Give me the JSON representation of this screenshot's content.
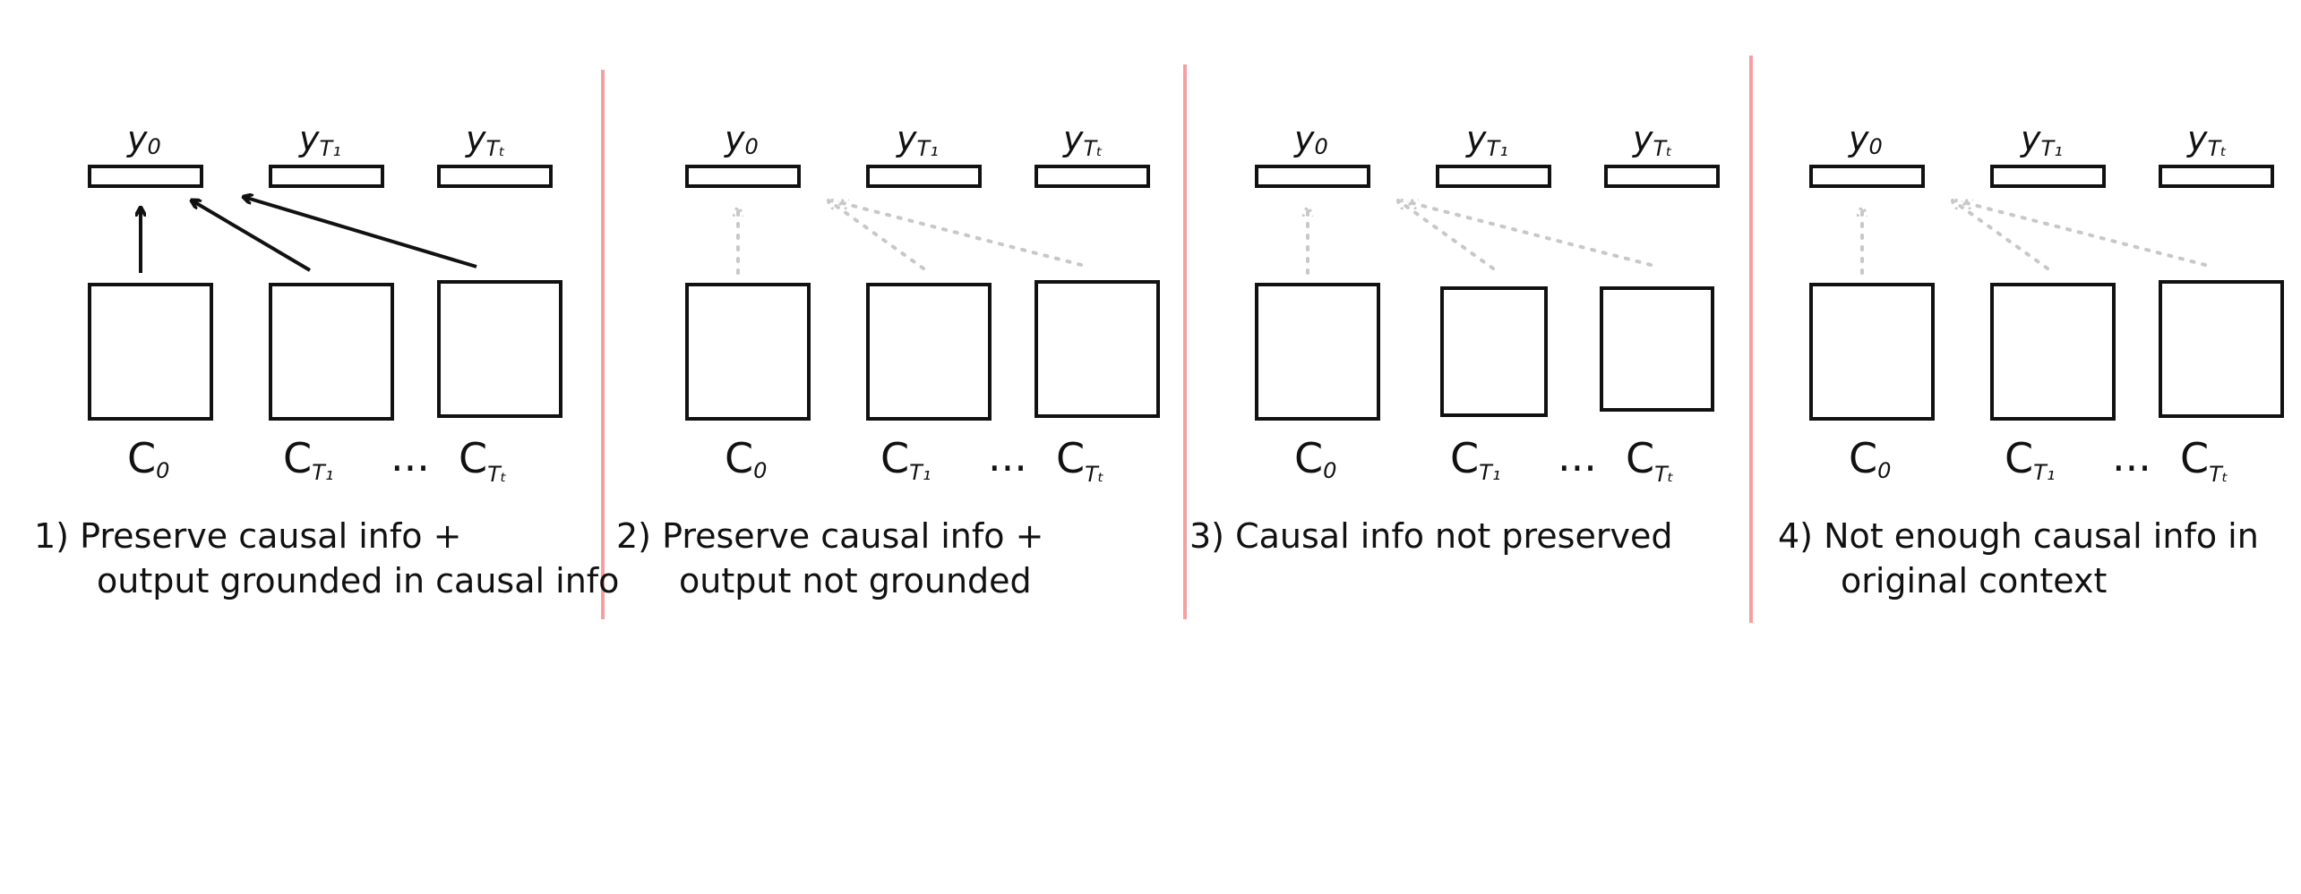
{
  "colors": {
    "ink": "#111111",
    "divider": "#f4a0a3",
    "dotted_arrow": "#c8c8c8",
    "box_red": "#cc1f1f",
    "box_purple": "#7a2a8f"
  },
  "labels": {
    "y0": "y",
    "y0_sub": "0",
    "y1": "y",
    "y1_sub": "T₁",
    "yt": "y",
    "yt_sub": "Tₜ",
    "c0": "C",
    "c0_sub": "0",
    "c1": "C",
    "c1_sub": "T₁",
    "ct": "C",
    "ct_sub": "Tₜ",
    "ellipsis": "..."
  },
  "panels": [
    {
      "caption_line1": "1) Preserve causal info +",
      "caption_line2": "output grounded in causal info",
      "arrow_style": "solid",
      "box_colors": [
        "ink",
        "ink",
        "ink"
      ]
    },
    {
      "caption_line1": "2) Preserve causal info +",
      "caption_line2": "output not grounded",
      "arrow_style": "dotted",
      "box_colors": [
        "ink",
        "ink",
        "ink"
      ]
    },
    {
      "caption_line1": "3) Causal info not preserved",
      "caption_line2": "",
      "arrow_style": "dotted",
      "box_colors": [
        "ink",
        "box_red",
        "box_purple"
      ]
    },
    {
      "caption_line1": "4) Not enough causal info in",
      "caption_line2": "original context",
      "arrow_style": "dotted",
      "box_colors": [
        "ink",
        "ink",
        "ink"
      ]
    }
  ]
}
